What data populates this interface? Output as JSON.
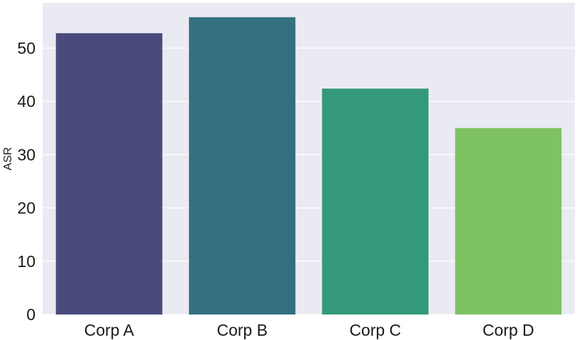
{
  "chart_data": {
    "type": "bar",
    "title": "",
    "xlabel": "",
    "ylabel": "ASR",
    "categories": [
      "Corp A",
      "Corp B",
      "Corp C",
      "Corp D"
    ],
    "values": [
      52.8,
      55.8,
      42.4,
      35.0
    ],
    "colors": [
      "#4a4a7c",
      "#35707f",
      "#33997a",
      "#7fc262"
    ],
    "ylim": [
      0,
      58.5
    ],
    "yticks": [
      0,
      10,
      20,
      30,
      40,
      50
    ],
    "grid": true,
    "background": "#eaeaf2",
    "gridColor": "#ffffff"
  }
}
